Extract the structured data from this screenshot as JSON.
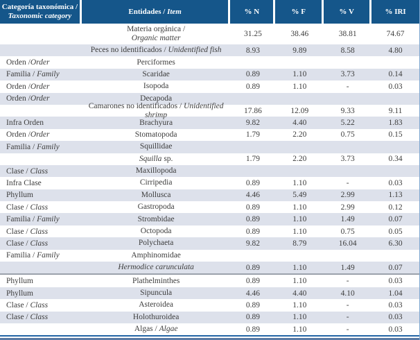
{
  "table": {
    "header": {
      "category_line1": "Categoría taxonómica /",
      "category_line2": "Taxonomic category",
      "item_plain": "Entidades / ",
      "item_italic": "Item",
      "col_n": "% N",
      "col_f": "% F",
      "col_v": "% V",
      "col_iri": "% IRI"
    },
    "colors": {
      "header_bg": "#15568a",
      "header_text": "#ffffff",
      "row_alt_bg": "#dde1eb",
      "body_text": "#3d3d3d",
      "separator_gray": "#9ba1ab",
      "bottom_border_blue": "#2264a4",
      "bottom_border_steel": "#5a7aa4",
      "right_border_blue": "#7fa8d0"
    },
    "rows": [
      {
        "cat_parts": [],
        "item_parts": [
          {
            "text": "Materia orgánica /",
            "italic": false,
            "break_after": true
          },
          {
            "text": "Organic matter",
            "italic": true
          }
        ],
        "n": "31.25",
        "f": "38.46",
        "v": "38.81",
        "iri": "74.67",
        "shaded": false,
        "two_line": true,
        "separator": false
      },
      {
        "cat_parts": [],
        "item_parts": [
          {
            "text": "Peces no identificados / ",
            "italic": false
          },
          {
            "text": "Unidentified fish",
            "italic": true
          }
        ],
        "n": "8.93",
        "f": "9.89",
        "v": "8.58",
        "iri": "4.80",
        "shaded": true,
        "two_line": false,
        "separator": false
      },
      {
        "cat_parts": [
          {
            "text": "Orden /",
            "italic": false
          },
          {
            "text": "Order",
            "italic": true
          }
        ],
        "item_parts": [
          {
            "text": "Perciformes",
            "italic": false
          }
        ],
        "n": "",
        "f": "",
        "v": "",
        "iri": "",
        "shaded": false,
        "two_line": false,
        "separator": false
      },
      {
        "cat_parts": [
          {
            "text": "Familia / ",
            "italic": false
          },
          {
            "text": "Family",
            "italic": true
          }
        ],
        "item_parts": [
          {
            "text": "Scaridae",
            "italic": false
          }
        ],
        "n": "0.89",
        "f": "1.10",
        "v": "3.73",
        "iri": "0.14",
        "shaded": true,
        "two_line": false,
        "separator": false
      },
      {
        "cat_parts": [
          {
            "text": "Orden /",
            "italic": false
          },
          {
            "text": "Order",
            "italic": true
          }
        ],
        "item_parts": [
          {
            "text": "Isopoda",
            "italic": false
          }
        ],
        "n": "0.89",
        "f": "1.10",
        "v": "-",
        "iri": "0.03",
        "shaded": false,
        "two_line": false,
        "separator": false
      },
      {
        "cat_parts": [
          {
            "text": "Orden /",
            "italic": false
          },
          {
            "text": "Order",
            "italic": true
          }
        ],
        "item_parts": [
          {
            "text": "Decapoda",
            "italic": false
          }
        ],
        "n": "",
        "f": "",
        "v": "",
        "iri": "",
        "shaded": true,
        "two_line": false,
        "separator": false
      },
      {
        "cat_parts": [],
        "item_parts": [
          {
            "text": "Camarones no identificados / ",
            "italic": false
          },
          {
            "text": "Unidentified shrimp",
            "italic": true
          }
        ],
        "n": "17.86",
        "f": "12.09",
        "v": "9.33",
        "iri": "9.11",
        "shaded": false,
        "two_line": false,
        "separator": false
      },
      {
        "cat_parts": [
          {
            "text": "Infra Orden",
            "italic": false
          }
        ],
        "item_parts": [
          {
            "text": "Brachyura",
            "italic": false
          }
        ],
        "n": "9.82",
        "f": "4.40",
        "v": "5.22",
        "iri": "1.83",
        "shaded": true,
        "two_line": false,
        "separator": false
      },
      {
        "cat_parts": [
          {
            "text": "Orden /",
            "italic": false
          },
          {
            "text": "Order",
            "italic": true
          }
        ],
        "item_parts": [
          {
            "text": "Stomatopoda",
            "italic": false
          }
        ],
        "n": "1.79",
        "f": "2.20",
        "v": "0.75",
        "iri": "0.15",
        "shaded": false,
        "two_line": false,
        "separator": false
      },
      {
        "cat_parts": [
          {
            "text": "Familia / ",
            "italic": false
          },
          {
            "text": "Family",
            "italic": true
          }
        ],
        "item_parts": [
          {
            "text": "Squillidae",
            "italic": false
          }
        ],
        "n": "",
        "f": "",
        "v": "",
        "iri": "",
        "shaded": true,
        "two_line": false,
        "separator": false
      },
      {
        "cat_parts": [],
        "item_parts": [
          {
            "text": "Squilla",
            "italic": true
          },
          {
            "text": " sp.",
            "italic": false
          }
        ],
        "n": "1.79",
        "f": "2.20",
        "v": "3.73",
        "iri": "0.34",
        "shaded": false,
        "two_line": false,
        "separator": false
      },
      {
        "cat_parts": [
          {
            "text": "Clase / ",
            "italic": false
          },
          {
            "text": "Class",
            "italic": true
          }
        ],
        "item_parts": [
          {
            "text": "Maxillopoda",
            "italic": false
          }
        ],
        "n": "",
        "f": "",
        "v": "",
        "iri": "",
        "shaded": true,
        "two_line": false,
        "separator": false
      },
      {
        "cat_parts": [
          {
            "text": "Infra Clase",
            "italic": false
          }
        ],
        "item_parts": [
          {
            "text": "Cirripedia",
            "italic": false
          }
        ],
        "n": "0.89",
        "f": "1.10",
        "v": "-",
        "iri": "0.03",
        "shaded": false,
        "two_line": false,
        "separator": false
      },
      {
        "cat_parts": [
          {
            "text": "Phyllum",
            "italic": false
          }
        ],
        "item_parts": [
          {
            "text": "Mollusca",
            "italic": false
          }
        ],
        "n": "4.46",
        "f": "5.49",
        "v": "2.99",
        "iri": "1.13",
        "shaded": true,
        "two_line": false,
        "separator": false
      },
      {
        "cat_parts": [
          {
            "text": "Clase / ",
            "italic": false
          },
          {
            "text": "Class",
            "italic": true
          }
        ],
        "item_parts": [
          {
            "text": "Gastropoda",
            "italic": false
          }
        ],
        "n": "0.89",
        "f": "1.10",
        "v": "2.99",
        "iri": "0.12",
        "shaded": false,
        "two_line": false,
        "separator": false
      },
      {
        "cat_parts": [
          {
            "text": "Familia / ",
            "italic": false
          },
          {
            "text": "Family",
            "italic": true
          }
        ],
        "item_parts": [
          {
            "text": "Strombidae",
            "italic": false
          }
        ],
        "n": "0.89",
        "f": "1.10",
        "v": "1.49",
        "iri": "0.07",
        "shaded": true,
        "two_line": false,
        "separator": false
      },
      {
        "cat_parts": [
          {
            "text": "Clase / ",
            "italic": false
          },
          {
            "text": "Class",
            "italic": true
          }
        ],
        "item_parts": [
          {
            "text": "Octopoda",
            "italic": false
          }
        ],
        "n": "0.89",
        "f": "1.10",
        "v": "0.75",
        "iri": "0.05",
        "shaded": false,
        "two_line": false,
        "separator": false
      },
      {
        "cat_parts": [
          {
            "text": "Clase / ",
            "italic": false
          },
          {
            "text": "Class",
            "italic": true
          }
        ],
        "item_parts": [
          {
            "text": "Polychaeta",
            "italic": false
          }
        ],
        "n": "9.82",
        "f": "8.79",
        "v": "16.04",
        "iri": "6.30",
        "shaded": true,
        "two_line": false,
        "separator": false
      },
      {
        "cat_parts": [
          {
            "text": "Familia / ",
            "italic": false
          },
          {
            "text": "Family",
            "italic": true
          }
        ],
        "item_parts": [
          {
            "text": "Amphinomidae",
            "italic": false
          }
        ],
        "n": "",
        "f": "",
        "v": "",
        "iri": "",
        "shaded": false,
        "two_line": false,
        "separator": false
      },
      {
        "cat_parts": [],
        "item_parts": [
          {
            "text": "Hermodice carunculata",
            "italic": true
          }
        ],
        "n": "0.89",
        "f": "1.10",
        "v": "1.49",
        "iri": "0.07",
        "shaded": true,
        "two_line": false,
        "separator": false
      },
      {
        "cat_parts": [
          {
            "text": "Phyllum",
            "italic": false
          }
        ],
        "item_parts": [
          {
            "text": "Plathelminthes",
            "italic": false
          }
        ],
        "n": "0.89",
        "f": "1.10",
        "v": "-",
        "iri": "0.03",
        "shaded": false,
        "two_line": false,
        "separator": true
      },
      {
        "cat_parts": [
          {
            "text": "Phyllum",
            "italic": false
          }
        ],
        "item_parts": [
          {
            "text": "Sipuncula",
            "italic": false
          }
        ],
        "n": "4.46",
        "f": "4.40",
        "v": "4.10",
        "iri": "1.04",
        "shaded": true,
        "two_line": false,
        "separator": false
      },
      {
        "cat_parts": [
          {
            "text": "Clase / ",
            "italic": false
          },
          {
            "text": "Class",
            "italic": true
          }
        ],
        "item_parts": [
          {
            "text": "Asteroidea",
            "italic": false
          }
        ],
        "n": "0.89",
        "f": "1.10",
        "v": "-",
        "iri": "0.03",
        "shaded": false,
        "two_line": false,
        "separator": false
      },
      {
        "cat_parts": [
          {
            "text": "Clase / ",
            "italic": false
          },
          {
            "text": "Class",
            "italic": true
          }
        ],
        "item_parts": [
          {
            "text": "Holothuroidea",
            "italic": false
          }
        ],
        "n": "0.89",
        "f": "1.10",
        "v": "-",
        "iri": "0.03",
        "shaded": true,
        "two_line": false,
        "separator": false
      },
      {
        "cat_parts": [],
        "item_parts": [
          {
            "text": "Algas / ",
            "italic": false
          },
          {
            "text": "Algae",
            "italic": true
          }
        ],
        "n": "0.89",
        "f": "1.10",
        "v": "-",
        "iri": "0.03",
        "shaded": false,
        "two_line": false,
        "separator": false
      }
    ]
  }
}
